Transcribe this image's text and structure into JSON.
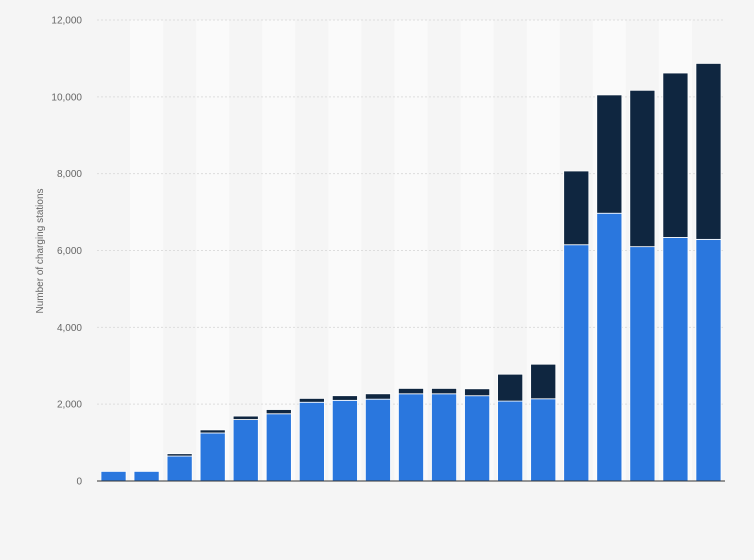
{
  "chart_data": {
    "type": "bar",
    "stacked": true,
    "title": "",
    "xlabel": "",
    "ylabel": "Number of charging stations",
    "ylim": [
      0,
      12000
    ],
    "yticks": [
      0,
      2000,
      4000,
      6000,
      8000,
      10000,
      12000
    ],
    "ytick_labels": [
      "0",
      "2,000",
      "4,000",
      "6,000",
      "8,000",
      "10,000",
      "12,000"
    ],
    "grid": true,
    "legend": "none",
    "categories": [
      "",
      "",
      "",
      "",
      "",
      "",
      "",
      "",
      "",
      "",
      "",
      "",
      "",
      "",
      "",
      "",
      "",
      "",
      ""
    ],
    "series": [
      {
        "color": "#2a77de",
        "values": [
          250,
          250,
          650,
          1250,
          1600,
          1750,
          2050,
          2100,
          2130,
          2270,
          2270,
          2220,
          2080,
          2140,
          6150,
          6970,
          6100,
          6340,
          6290
        ]
      },
      {
        "color": "#0f2640",
        "values": [
          0,
          0,
          60,
          80,
          90,
          110,
          100,
          120,
          140,
          140,
          140,
          180,
          700,
          900,
          1920,
          3080,
          4070,
          4280,
          4580
        ]
      }
    ]
  }
}
